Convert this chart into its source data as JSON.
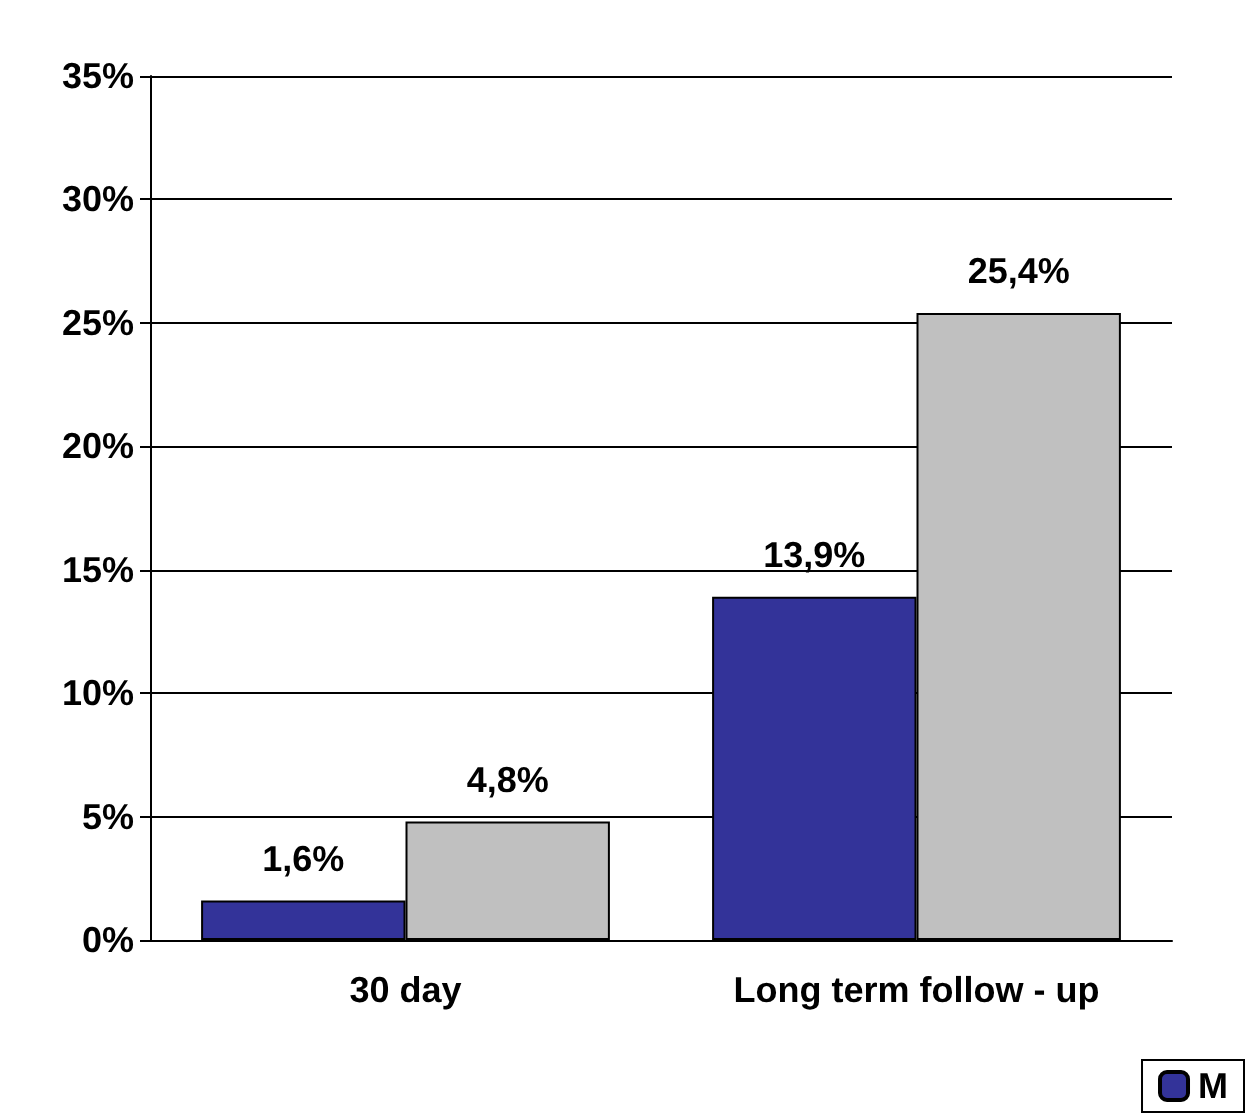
{
  "chart_data": {
    "type": "bar",
    "categories": [
      "30 day",
      "Long term follow - up"
    ],
    "series": [
      {
        "name": "M",
        "color": "#333399",
        "values": [
          1.6,
          13.9
        ],
        "value_labels": [
          "1,6%",
          "13,9%"
        ]
      },
      {
        "color": "#c0c0c0",
        "values": [
          4.8,
          25.4
        ],
        "value_labels": [
          "4,8%",
          "25,4%"
        ]
      }
    ],
    "ylim": [
      0,
      35
    ],
    "yticks": [
      {
        "value": 0,
        "label": "0%"
      },
      {
        "value": 5,
        "label": "5%"
      },
      {
        "value": 10,
        "label": "10%"
      },
      {
        "value": 15,
        "label": "15%"
      },
      {
        "value": 20,
        "label": "20%"
      },
      {
        "value": 25,
        "label": "25%"
      },
      {
        "value": 30,
        "label": "30%"
      },
      {
        "value": 35,
        "label": "35%"
      }
    ],
    "grid": "y",
    "legend": "bottom right"
  }
}
